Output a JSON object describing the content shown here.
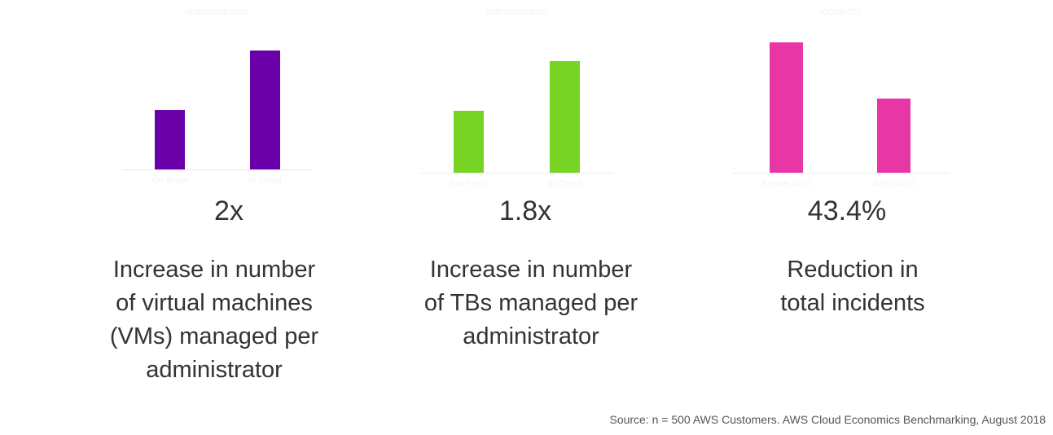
{
  "chart_data": [
    {
      "type": "bar",
      "title": "administrator",
      "categories": [
        "On-Prem",
        "In Cloud"
      ],
      "values": [
        1,
        2
      ],
      "color": "#6a00a8",
      "stat": "2x",
      "description": [
        "Increase in number",
        "of virtual machines",
        "(VMs) managed per",
        "administrator"
      ]
    },
    {
      "type": "bar",
      "title": "administrator",
      "categories": [
        "On-Prem",
        "In Cloud"
      ],
      "values": [
        1,
        1.8
      ],
      "color": "#77d324",
      "stat": "1.8x",
      "description": [
        "Increase in number",
        "of TBs managed per",
        "administrator"
      ]
    },
    {
      "type": "bar",
      "title": "incidents",
      "categories": [
        "Before AWS",
        "After AWS"
      ],
      "values": [
        1,
        0.566
      ],
      "color": "#e936a7",
      "stat": "43.4%",
      "description": [
        "Reduction in",
        "total incidents"
      ]
    }
  ],
  "source": "Source: n = 500 AWS Customers. AWS Cloud Economics Benchmarking, August 2018"
}
